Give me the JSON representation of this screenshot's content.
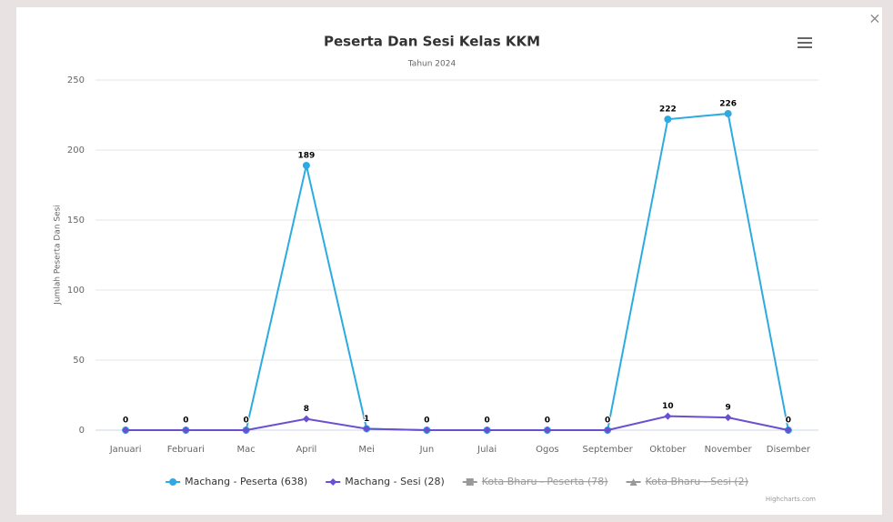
{
  "chart_data": {
    "type": "line",
    "title": "Peserta Dan Sesi Kelas KKM",
    "subtitle": "Tahun 2024",
    "y_label": "Jumlah Peserta Dan Sesi",
    "credits": "Highcharts.com",
    "categories": [
      "Januari",
      "Februari",
      "Mac",
      "April",
      "Mei",
      "Jun",
      "Julai",
      "Ogos",
      "September",
      "Oktober",
      "November",
      "Disember"
    ],
    "series": [
      {
        "name": "Machang - Peserta (638)",
        "color": "#2caae2",
        "marker": "circle",
        "visible": true,
        "values": [
          0,
          0,
          0,
          189,
          1,
          0,
          0,
          0,
          0,
          222,
          226,
          0
        ]
      },
      {
        "name": "Machang - Sesi (28)",
        "color": "#6a4fd1",
        "marker": "diamond",
        "visible": true,
        "values": [
          0,
          0,
          0,
          8,
          1,
          0,
          0,
          0,
          0,
          10,
          9,
          0
        ]
      },
      {
        "name": "Kota Bharu - Peserta (78)",
        "color": "#555555",
        "marker": "square",
        "visible": false
      },
      {
        "name": "Kota Bharu - Sesi (2)",
        "color": "#555555",
        "marker": "triangle",
        "visible": false
      }
    ],
    "ylim": [
      0,
      250
    ],
    "yticks": [
      0,
      50,
      100,
      150,
      200,
      250
    ],
    "grid": true,
    "data_labels": true,
    "legend": "bottom"
  }
}
